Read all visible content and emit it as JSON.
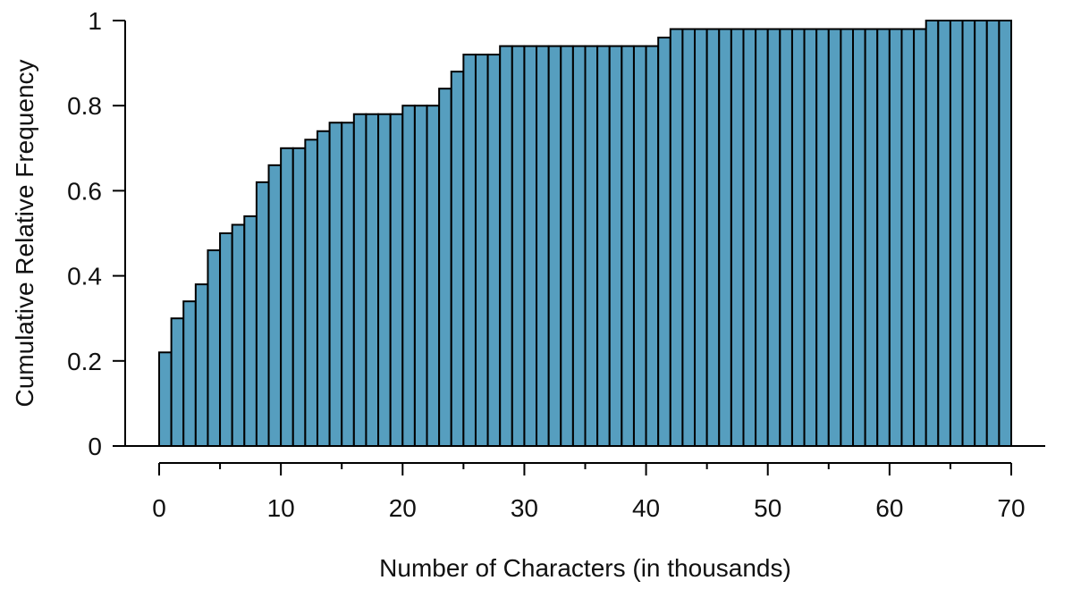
{
  "chart_data": {
    "type": "bar",
    "subtype": "cumulative-histogram",
    "title": "",
    "xlabel": "Number of Characters (in thousands)",
    "ylabel": "Cumulative Relative Frequency",
    "bin_width": 1,
    "xlim": [
      0,
      70
    ],
    "ylim": [
      0,
      1
    ],
    "x_ticks": [
      0,
      10,
      20,
      30,
      40,
      50,
      60,
      70
    ],
    "x_minor_ticks": [
      5,
      15,
      25,
      35,
      45,
      55,
      65
    ],
    "y_ticks": [
      0,
      0.2,
      0.4,
      0.6,
      0.8,
      1
    ],
    "y_tick_labels": [
      "0",
      "0.2",
      "0.4",
      "0.6",
      "0.8",
      "1"
    ],
    "bin_starts": [
      0,
      1,
      2,
      3,
      4,
      5,
      6,
      7,
      8,
      9,
      10,
      11,
      12,
      13,
      14,
      15,
      16,
      17,
      18,
      19,
      20,
      21,
      22,
      23,
      24,
      25,
      26,
      27,
      28,
      29,
      30,
      31,
      32,
      33,
      34,
      35,
      36,
      37,
      38,
      39,
      40,
      41,
      42,
      43,
      44,
      45,
      46,
      47,
      48,
      49,
      50,
      51,
      52,
      53,
      54,
      55,
      56,
      57,
      58,
      59,
      60,
      61,
      62,
      63,
      64,
      65,
      66,
      67,
      68,
      69
    ],
    "values": [
      0.22,
      0.3,
      0.34,
      0.38,
      0.46,
      0.5,
      0.52,
      0.54,
      0.62,
      0.66,
      0.7,
      0.7,
      0.72,
      0.74,
      0.76,
      0.76,
      0.78,
      0.78,
      0.78,
      0.78,
      0.8,
      0.8,
      0.8,
      0.84,
      0.88,
      0.92,
      0.92,
      0.92,
      0.94,
      0.94,
      0.94,
      0.94,
      0.94,
      0.94,
      0.94,
      0.94,
      0.94,
      0.94,
      0.94,
      0.94,
      0.94,
      0.96,
      0.98,
      0.98,
      0.98,
      0.98,
      0.98,
      0.98,
      0.98,
      0.98,
      0.98,
      0.98,
      0.98,
      0.98,
      0.98,
      0.98,
      0.98,
      0.98,
      0.98,
      0.98,
      0.98,
      0.98,
      0.98,
      1.0,
      1.0,
      1.0,
      1.0,
      1.0,
      1.0,
      1.0
    ],
    "bar_color": "#569EBF",
    "edge_color": "#000000",
    "grid": false,
    "legend": "none"
  }
}
